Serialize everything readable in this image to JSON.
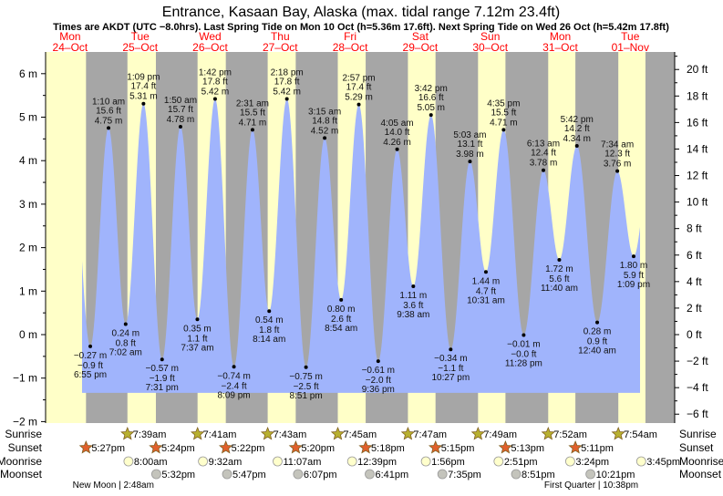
{
  "chart_data": {
    "type": "area",
    "title": "Entrance, Kasaan Bay, Alaska (max. tidal range 7.12m 23.4ft)",
    "subtitle": "Times are AKDT (UTC −8.0hrs). Last Spring Tide on Mon 10 Oct (h=5.36m 17.6ft). Next Spring Tide on Wed 26 Oct (h=5.42m 17.8ft)",
    "days": [
      {
        "dow": "Mon",
        "date": "24–Oct"
      },
      {
        "dow": "Tue",
        "date": "25–Oct"
      },
      {
        "dow": "Wed",
        "date": "26–Oct"
      },
      {
        "dow": "Thu",
        "date": "27–Oct"
      },
      {
        "dow": "Fri",
        "date": "28–Oct"
      },
      {
        "dow": "Sat",
        "date": "29–Oct"
      },
      {
        "dow": "Sun",
        "date": "30–Oct"
      },
      {
        "dow": "Mon",
        "date": "31–Oct"
      },
      {
        "dow": "Tue",
        "date": "01–Nov"
      }
    ],
    "y_left": {
      "unit": "m",
      "ticks": [
        -2,
        -1,
        0,
        1,
        2,
        3,
        4,
        5,
        6
      ],
      "range": [
        -2,
        6.5
      ]
    },
    "y_right": {
      "unit": "ft",
      "ticks": [
        -6,
        -4,
        -2,
        0,
        2,
        4,
        6,
        8,
        10,
        12,
        14,
        16,
        18,
        20
      ]
    },
    "extremes": [
      {
        "day": 0,
        "time": "6:55 pm",
        "m": -0.27,
        "ft": "−0.9",
        "type": "low"
      },
      {
        "day": 1,
        "time": "1:10 am",
        "m": 4.75,
        "ft": "15.6",
        "type": "high"
      },
      {
        "day": 1,
        "time": "7:02 am",
        "m": 0.24,
        "ft": "0.8",
        "type": "low"
      },
      {
        "day": 1,
        "time": "1:09 pm",
        "m": 5.31,
        "ft": "17.4",
        "type": "high"
      },
      {
        "day": 1,
        "time": "7:31 pm",
        "m": -0.57,
        "ft": "−1.9",
        "type": "low"
      },
      {
        "day": 2,
        "time": "1:50 am",
        "m": 4.78,
        "ft": "15.7",
        "type": "high"
      },
      {
        "day": 2,
        "time": "7:37 am",
        "m": 0.35,
        "ft": "1.1",
        "type": "low"
      },
      {
        "day": 2,
        "time": "1:42 pm",
        "m": 5.42,
        "ft": "17.8",
        "type": "high"
      },
      {
        "day": 2,
        "time": "8:09 pm",
        "m": -0.74,
        "ft": "−2.4",
        "type": "low"
      },
      {
        "day": 3,
        "time": "2:31 am",
        "m": 4.71,
        "ft": "15.5",
        "type": "high"
      },
      {
        "day": 3,
        "time": "8:14 am",
        "m": 0.54,
        "ft": "1.8",
        "type": "low"
      },
      {
        "day": 3,
        "time": "2:18 pm",
        "m": 5.42,
        "ft": "17.8",
        "type": "high"
      },
      {
        "day": 3,
        "time": "8:51 pm",
        "m": -0.75,
        "ft": "−2.5",
        "type": "low"
      },
      {
        "day": 4,
        "time": "3:15 am",
        "m": 4.52,
        "ft": "14.8",
        "type": "high"
      },
      {
        "day": 4,
        "time": "8:54 am",
        "m": 0.8,
        "ft": "2.6",
        "type": "low"
      },
      {
        "day": 4,
        "time": "2:57 pm",
        "m": 5.29,
        "ft": "17.4",
        "type": "high"
      },
      {
        "day": 4,
        "time": "9:36 pm",
        "m": -0.61,
        "ft": "−2.0",
        "type": "low"
      },
      {
        "day": 5,
        "time": "4:05 am",
        "m": 4.26,
        "ft": "14.0",
        "type": "high"
      },
      {
        "day": 5,
        "time": "9:38 am",
        "m": 1.11,
        "ft": "3.6",
        "type": "low"
      },
      {
        "day": 5,
        "time": "3:42 pm",
        "m": 5.05,
        "ft": "16.6",
        "type": "high"
      },
      {
        "day": 5,
        "time": "10:27 pm",
        "m": -0.34,
        "ft": "−1.1",
        "type": "low"
      },
      {
        "day": 6,
        "time": "5:03 am",
        "m": 3.98,
        "ft": "13.1",
        "type": "high"
      },
      {
        "day": 6,
        "time": "10:31 am",
        "m": 1.44,
        "ft": "4.7",
        "type": "low"
      },
      {
        "day": 6,
        "time": "4:35 pm",
        "m": 4.71,
        "ft": "15.5",
        "type": "high"
      },
      {
        "day": 6,
        "time": "11:28 pm",
        "m": -0.01,
        "ft": "−0.0",
        "type": "low"
      },
      {
        "day": 7,
        "time": "6:13 am",
        "m": 3.78,
        "ft": "12.4",
        "type": "high"
      },
      {
        "day": 7,
        "time": "11:40 am",
        "m": 1.72,
        "ft": "5.6",
        "type": "low"
      },
      {
        "day": 7,
        "time": "5:42 pm",
        "m": 4.34,
        "ft": "14.2",
        "type": "high"
      },
      {
        "day": 8,
        "time": "12:40 am",
        "m": 0.28,
        "ft": "0.9",
        "type": "low"
      },
      {
        "day": 8,
        "time": "7:34 am",
        "m": 3.76,
        "ft": "12.3",
        "type": "high"
      },
      {
        "day": 8,
        "time": "1:09 pm",
        "m": 1.8,
        "ft": "5.9",
        "type": "low"
      }
    ],
    "row_labels": {
      "sunrise": "Sunrise",
      "sunset": "Sunset",
      "moonrise": "Moonrise",
      "moonset": "Moonset"
    },
    "sunrise": [
      {
        "day": 1,
        "time": "7:39am"
      },
      {
        "day": 2,
        "time": "7:41am"
      },
      {
        "day": 3,
        "time": "7:43am"
      },
      {
        "day": 4,
        "time": "7:45am"
      },
      {
        "day": 5,
        "time": "7:47am"
      },
      {
        "day": 6,
        "time": "7:49am"
      },
      {
        "day": 7,
        "time": "7:52am"
      },
      {
        "day": 8,
        "time": "7:54am"
      }
    ],
    "sunset": [
      {
        "day": 0,
        "time": "5:27pm"
      },
      {
        "day": 1,
        "time": "5:24pm"
      },
      {
        "day": 2,
        "time": "5:22pm"
      },
      {
        "day": 3,
        "time": "5:20pm"
      },
      {
        "day": 4,
        "time": "5:18pm"
      },
      {
        "day": 5,
        "time": "5:15pm"
      },
      {
        "day": 6,
        "time": "5:13pm"
      },
      {
        "day": 7,
        "time": "5:11pm"
      }
    ],
    "moonrise": [
      {
        "day": 1,
        "time": "8:00am"
      },
      {
        "day": 2,
        "time": "9:32am"
      },
      {
        "day": 3,
        "time": "11:07am"
      },
      {
        "day": 4,
        "time": "12:39pm"
      },
      {
        "day": 5,
        "time": "1:56pm"
      },
      {
        "day": 6,
        "time": "2:51pm"
      },
      {
        "day": 7,
        "time": "3:24pm"
      },
      {
        "day": 8,
        "time": "3:45pm"
      }
    ],
    "moonset": [
      {
        "day": 1,
        "time": "5:32pm"
      },
      {
        "day": 2,
        "time": "5:47pm"
      },
      {
        "day": 3,
        "time": "6:07pm"
      },
      {
        "day": 4,
        "time": "6:41pm"
      },
      {
        "day": 5,
        "time": "7:35pm"
      },
      {
        "day": 6,
        "time": "8:51pm"
      },
      {
        "day": 7,
        "time": "10:21pm"
      }
    ],
    "moon_phases": [
      {
        "day": 1,
        "time": "2:48am",
        "label": "New Moon | 2:48am"
      },
      {
        "day": 7,
        "time": "10:38pm",
        "label": "First Quarter | 10:38pm"
      }
    ],
    "colors": {
      "water": "#a0b4fc",
      "night": "#a6a6a6",
      "day": "#ffffc8",
      "day_label": "#ff0000",
      "sunrise_star": "#b8b030",
      "sunset_star": "#e0602c",
      "moonrise": "#ffffcc",
      "moonset": "#c4c4bc"
    }
  }
}
